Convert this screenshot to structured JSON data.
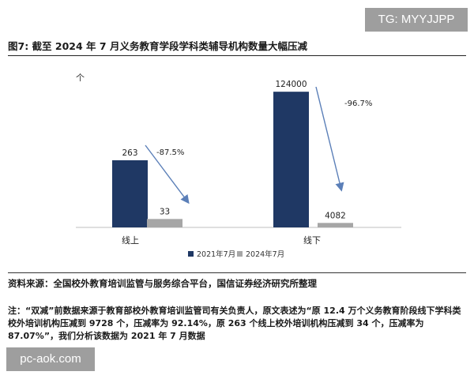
{
  "watermarks": {
    "top": "TG: MYYJJPP",
    "bottom": "pc-aok.com"
  },
  "figure_title": "图7: 截至 2024 年 7 月义务教育学段学科类辅导机构数量大幅压减",
  "source_text": "资料来源：全国校外教育培训监管与服务综合平台，国信证券经济研究所整理",
  "note_text": "注：“双减”前数据来源于教育部校外教育培训监管司有关负责人，原文表述为“原 12.4 万个义务教育阶段线下学科类校外培训机构压减到 9728 个，压减率为 92.14%，原 263 个线上校外培训机构压减到 34 个，压减率为 87.07%”，我们分析该数据为 2021 年 7 月数据",
  "chart_data": [
    {
      "type": "bar",
      "unit_label": "个",
      "categories": [
        "线上"
      ],
      "series": [
        {
          "name": "2021年7月",
          "values": [
            263
          ],
          "color": "#1f3864"
        },
        {
          "name": "2024年7月",
          "values": [
            33
          ],
          "color": "#a6a6a6"
        }
      ],
      "data_labels": [
        "263",
        "33"
      ],
      "annotations": [
        {
          "text": "-87.5%"
        }
      ],
      "ylim": [
        0,
        600
      ]
    },
    {
      "type": "bar",
      "categories": [
        "线下"
      ],
      "series": [
        {
          "name": "2021年7月",
          "values": [
            124000
          ],
          "color": "#1f3864"
        },
        {
          "name": "2024年7月",
          "values": [
            4082
          ],
          "color": "#a6a6a6"
        }
      ],
      "data_labels": [
        "124000",
        "4082"
      ],
      "annotations": [
        {
          "text": "-96.7%"
        }
      ],
      "ylim": [
        0,
        140000
      ]
    }
  ],
  "legend": {
    "placement": "bottom-right"
  },
  "arrow_color": "#5b7fb8"
}
